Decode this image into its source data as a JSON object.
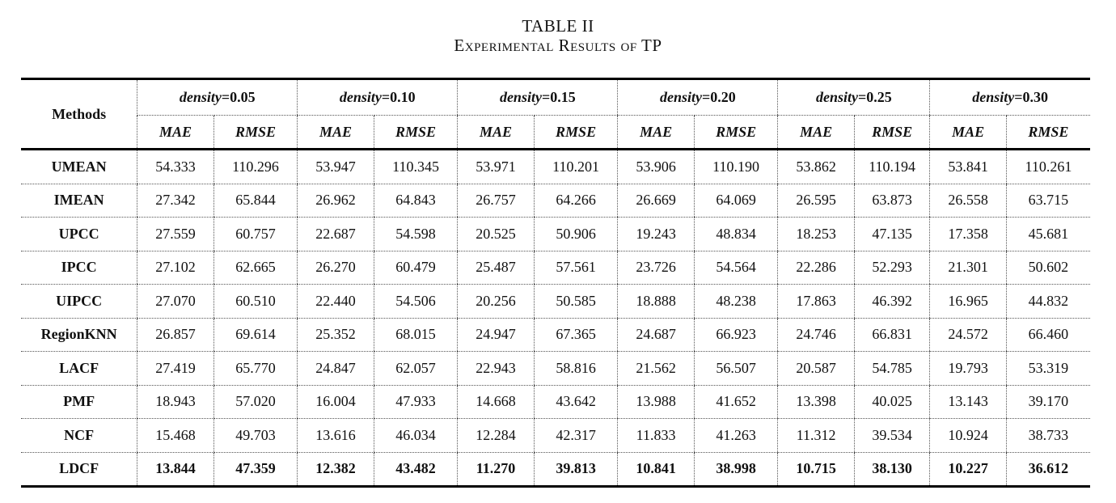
{
  "caption": {
    "line1": "TABLE II",
    "line2": "Experimental Results of TP"
  },
  "table": {
    "methods_header": "Methods",
    "group_prefix": "density",
    "groups": [
      "=0.05",
      "=0.10",
      "=0.15",
      "=0.20",
      "=0.25",
      "=0.30"
    ],
    "metrics": [
      "MAE",
      "RMSE"
    ],
    "rows": [
      {
        "method": "UMEAN",
        "values": [
          "54.333",
          "110.296",
          "53.947",
          "110.345",
          "53.971",
          "110.201",
          "53.906",
          "110.190",
          "53.862",
          "110.194",
          "53.841",
          "110.261"
        ]
      },
      {
        "method": "IMEAN",
        "values": [
          "27.342",
          "65.844",
          "26.962",
          "64.843",
          "26.757",
          "64.266",
          "26.669",
          "64.069",
          "26.595",
          "63.873",
          "26.558",
          "63.715"
        ]
      },
      {
        "method": "UPCC",
        "values": [
          "27.559",
          "60.757",
          "22.687",
          "54.598",
          "20.525",
          "50.906",
          "19.243",
          "48.834",
          "18.253",
          "47.135",
          "17.358",
          "45.681"
        ]
      },
      {
        "method": "IPCC",
        "values": [
          "27.102",
          "62.665",
          "26.270",
          "60.479",
          "25.487",
          "57.561",
          "23.726",
          "54.564",
          "22.286",
          "52.293",
          "21.301",
          "50.602"
        ]
      },
      {
        "method": "UIPCC",
        "values": [
          "27.070",
          "60.510",
          "22.440",
          "54.506",
          "20.256",
          "50.585",
          "18.888",
          "48.238",
          "17.863",
          "46.392",
          "16.965",
          "44.832"
        ]
      },
      {
        "method": "RegionKNN",
        "values": [
          "26.857",
          "69.614",
          "25.352",
          "68.015",
          "24.947",
          "67.365",
          "24.687",
          "66.923",
          "24.746",
          "66.831",
          "24.572",
          "66.460"
        ]
      },
      {
        "method": "LACF",
        "values": [
          "27.419",
          "65.770",
          "24.847",
          "62.057",
          "22.943",
          "58.816",
          "21.562",
          "56.507",
          "20.587",
          "54.785",
          "19.793",
          "53.319"
        ]
      },
      {
        "method": "PMF",
        "values": [
          "18.943",
          "57.020",
          "16.004",
          "47.933",
          "14.668",
          "43.642",
          "13.988",
          "41.652",
          "13.398",
          "40.025",
          "13.143",
          "39.170"
        ]
      },
      {
        "method": "NCF",
        "values": [
          "15.468",
          "49.703",
          "13.616",
          "46.034",
          "12.284",
          "42.317",
          "11.833",
          "41.263",
          "11.312",
          "39.534",
          "10.924",
          "38.733"
        ]
      },
      {
        "method": "LDCF",
        "values": [
          "13.844",
          "47.359",
          "12.382",
          "43.482",
          "11.270",
          "39.813",
          "10.841",
          "38.998",
          "10.715",
          "38.130",
          "10.227",
          "36.612"
        ]
      }
    ]
  }
}
